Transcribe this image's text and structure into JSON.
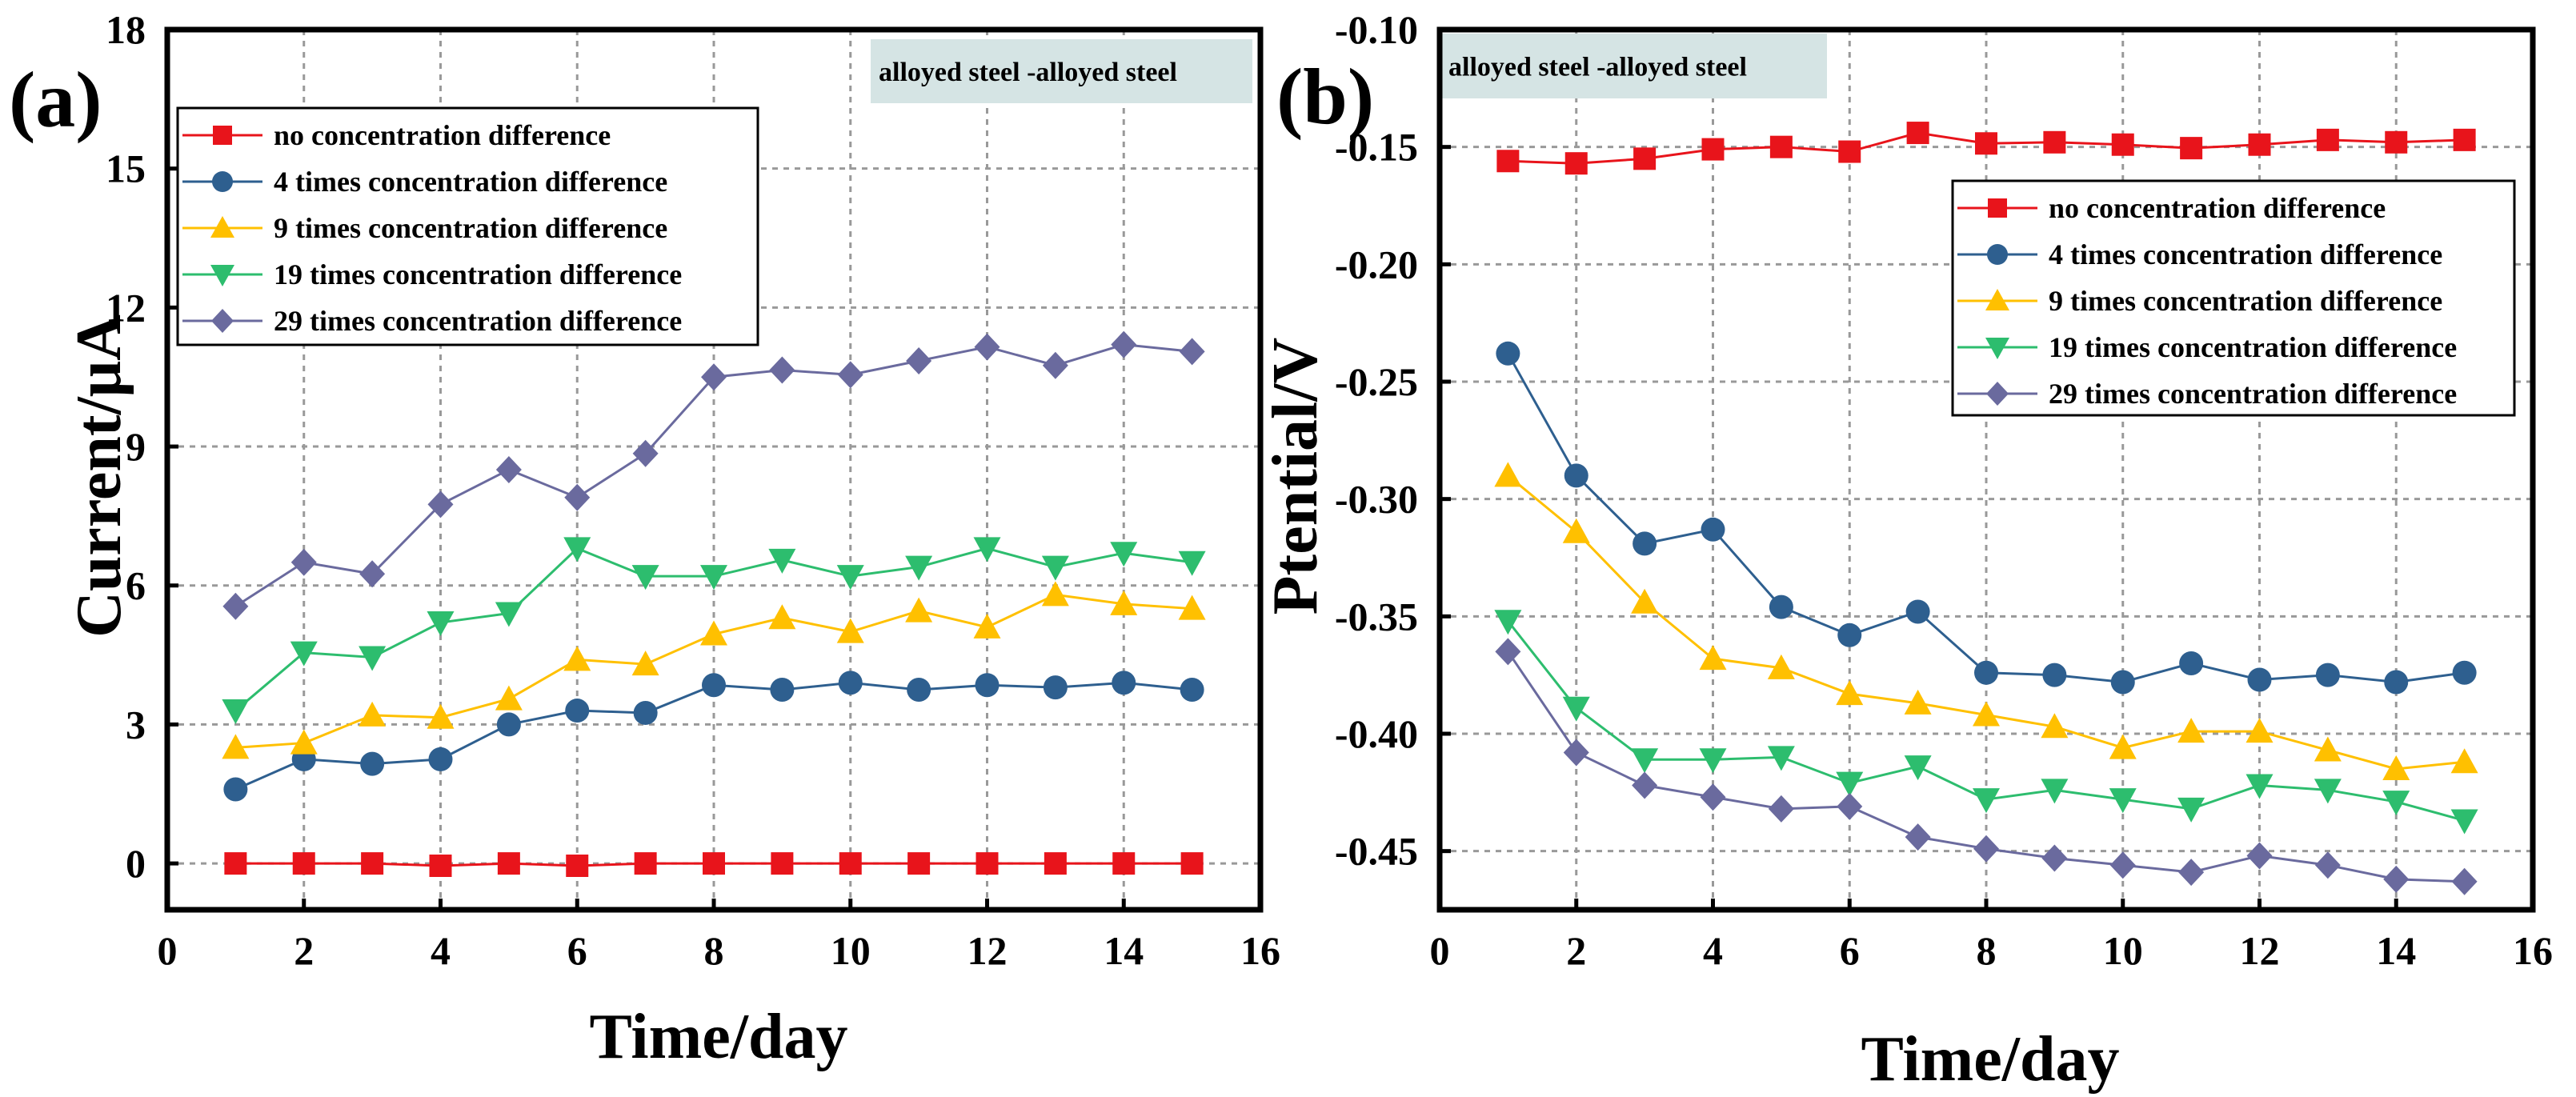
{
  "colors": {
    "no": "#e8141b",
    "c4": "#2e5f8f",
    "c9": "#ffc000",
    "c19": "#2dbd6e",
    "c29": "#6a6a9e",
    "annotation_bg": "#d5e4e4"
  },
  "chart_data": [
    {
      "type": "line",
      "panel_label": "(a)",
      "annotation": "alloyed steel -alloyed steel",
      "xlabel": "Time/day",
      "ylabel": "Current/μA",
      "xlim": [
        0,
        16
      ],
      "ylim": [
        -1,
        18
      ],
      "xticks": [
        "0",
        "2",
        "4",
        "6",
        "8",
        "10",
        "12",
        "14",
        "16"
      ],
      "yticks": [
        "0",
        "3",
        "6",
        "9",
        "12",
        "15",
        "18"
      ],
      "grid": true,
      "legend_position": "top-left",
      "x": [
        1,
        2,
        3,
        4,
        5,
        6,
        7,
        8,
        9,
        10,
        11,
        12,
        13,
        14,
        15
      ],
      "series": [
        {
          "name": "no concentration difference",
          "marker": "square",
          "values": [
            0,
            0,
            0,
            -0.05,
            0,
            -0.05,
            0,
            0,
            0,
            0,
            0,
            0,
            0,
            0,
            0
          ]
        },
        {
          "name": "4 times concentration difference",
          "marker": "circle",
          "values": [
            1.6,
            2.25,
            2.15,
            2.25,
            3.0,
            3.3,
            3.25,
            3.85,
            3.75,
            3.9,
            3.75,
            3.85,
            3.8,
            3.9,
            3.75
          ]
        },
        {
          "name": "9 times concentration difference",
          "marker": "triangle-up",
          "values": [
            2.5,
            2.6,
            3.2,
            3.15,
            3.55,
            4.4,
            4.3,
            4.95,
            5.3,
            5.0,
            5.45,
            5.1,
            5.8,
            5.6,
            5.5
          ]
        },
        {
          "name": "19 times concentration difference",
          "marker": "triangle-down",
          "values": [
            3.3,
            4.55,
            4.45,
            5.2,
            5.4,
            6.8,
            6.2,
            6.2,
            6.55,
            6.2,
            6.4,
            6.8,
            6.4,
            6.7,
            6.5
          ]
        },
        {
          "name": "29 times concentration difference",
          "marker": "diamond",
          "values": [
            5.55,
            6.5,
            6.25,
            7.75,
            8.5,
            7.9,
            8.85,
            10.5,
            10.65,
            10.55,
            10.85,
            11.15,
            10.75,
            11.2,
            11.05
          ]
        }
      ]
    },
    {
      "type": "line",
      "panel_label": "(b)",
      "annotation": "alloyed steel -alloyed steel",
      "xlabel": "Time/day",
      "ylabel": "Ptential/V",
      "xlim": [
        0,
        16
      ],
      "ylim": [
        -0.475,
        -0.1
      ],
      "xticks": [
        "0",
        "2",
        "4",
        "6",
        "8",
        "10",
        "12",
        "14",
        "16"
      ],
      "yticks": [
        "-0.45",
        "-0.40",
        "-0.35",
        "-0.30",
        "-0.25",
        "-0.20",
        "-0.15",
        "-0.10"
      ],
      "grid": true,
      "legend_position": "top-right",
      "x": [
        1,
        2,
        3,
        4,
        5,
        6,
        7,
        8,
        9,
        10,
        11,
        12,
        13,
        14,
        15
      ],
      "series": [
        {
          "name": "no concentration difference",
          "marker": "square",
          "values": [
            -0.156,
            -0.157,
            -0.155,
            -0.151,
            -0.15,
            -0.152,
            -0.144,
            -0.1485,
            -0.148,
            -0.149,
            -0.1505,
            -0.149,
            -0.147,
            -0.148,
            -0.147
          ]
        },
        {
          "name": "4 times concentration difference",
          "marker": "circle",
          "values": [
            -0.238,
            -0.29,
            -0.319,
            -0.313,
            -0.346,
            -0.358,
            -0.348,
            -0.374,
            -0.375,
            -0.378,
            -0.37,
            -0.377,
            -0.375,
            -0.378,
            -0.374
          ]
        },
        {
          "name": "9 times concentration difference",
          "marker": "triangle-up",
          "values": [
            -0.29,
            -0.314,
            -0.344,
            -0.368,
            -0.372,
            -0.383,
            -0.387,
            -0.392,
            -0.397,
            -0.406,
            -0.399,
            -0.399,
            -0.407,
            -0.415,
            -0.412
          ]
        },
        {
          "name": "19 times concentration difference",
          "marker": "triangle-down",
          "values": [
            -0.352,
            -0.389,
            -0.411,
            -0.411,
            -0.41,
            -0.421,
            -0.414,
            -0.428,
            -0.424,
            -0.428,
            -0.432,
            -0.422,
            -0.424,
            -0.429,
            -0.437
          ]
        },
        {
          "name": "29 times concentration difference",
          "marker": "diamond",
          "values": [
            -0.365,
            -0.408,
            -0.422,
            -0.427,
            -0.432,
            -0.431,
            -0.444,
            -0.449,
            -0.453,
            -0.456,
            -0.459,
            -0.452,
            -0.456,
            -0.462,
            -0.463
          ]
        }
      ]
    }
  ]
}
